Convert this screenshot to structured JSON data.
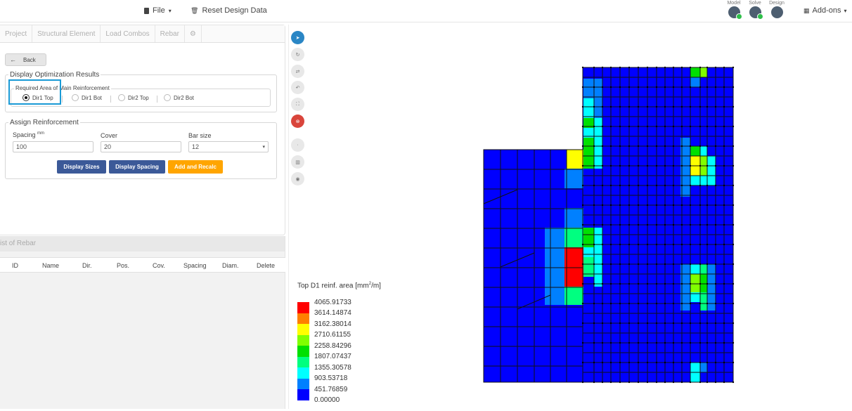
{
  "topbar": {
    "file_label": "File",
    "reset_label": "Reset Design Data",
    "stages": [
      "Model",
      "Solve",
      "Design"
    ],
    "addons_label": "Add-ons"
  },
  "tabs": [
    "Project",
    "Structural Element",
    "Load Combos",
    "Rebar"
  ],
  "back_label": "Back",
  "optimization": {
    "legend": "Display Optimization Results",
    "group_legend": "Required Area of Main Reinforcement",
    "options": [
      "Dir1 Top",
      "Dir1 Bot",
      "Dir2 Top",
      "Dir2 Bot"
    ],
    "selected": "Dir1 Top"
  },
  "assign": {
    "legend": "Assign Reinforcement",
    "spacing_label": "Spacing",
    "spacing_unit": "mm",
    "spacing_value": "100",
    "cover_label": "Cover",
    "cover_value": "20",
    "barsize_label": "Bar size",
    "barsize_value": "12",
    "btn_sizes": "Display Sizes",
    "btn_spacing": "Display Spacing",
    "btn_recalc": "Add and Recalc"
  },
  "rebar_list": {
    "title": "ist of Rebar",
    "columns": [
      "ID",
      "Name",
      "Dir.",
      "Pos.",
      "Cov.",
      "Spacing",
      "Diam.",
      "Delete"
    ]
  },
  "contour_legend": {
    "title": "Top D1 reinf. area [mm",
    "title_sup": "2",
    "title_end": "/m]",
    "values": [
      "4065.91733",
      "3614.14874",
      "3162.38014",
      "2710.61155",
      "2258.84296",
      "1807.07437",
      "1355.30578",
      "903.53718",
      "451.76859",
      "0.00000"
    ],
    "colors": [
      "#ff0000",
      "#ff8000",
      "#ffff00",
      "#80ff00",
      "#00e000",
      "#00ff80",
      "#00ffff",
      "#0080ff",
      "#0000ff"
    ]
  },
  "colors": {
    "accent": "#1a9ad6",
    "btn_primary": "#3b5998",
    "btn_warning": "#ffa500",
    "mesh_base": "#0000ff"
  }
}
